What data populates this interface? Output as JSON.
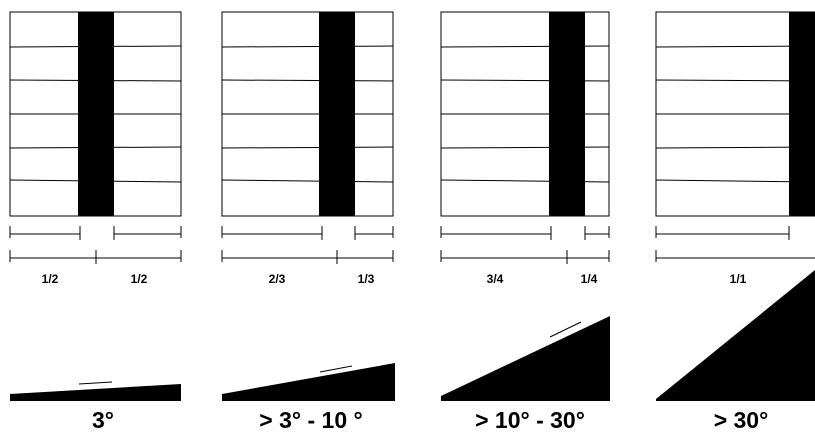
{
  "colors": {
    "ink": "#000000",
    "background": "#ffffff"
  },
  "panels": [
    {
      "left_fraction": "1/2",
      "right_fraction": "1/2",
      "split": 0.5,
      "angle_label": "3°",
      "slope_deg": 3
    },
    {
      "left_fraction": "2/3",
      "right_fraction": "1/3",
      "split": 0.6667,
      "angle_label": "> 3° - 10 °",
      "slope_deg": 10
    },
    {
      "left_fraction": "3/4",
      "right_fraction": "1/4",
      "split": 0.75,
      "angle_label": "> 10° - 30°",
      "slope_deg": 30
    },
    {
      "left_fraction": "1/1",
      "right_fraction": "",
      "split": 1.0,
      "angle_label": "> 30°",
      "slope_deg": 45
    }
  ]
}
